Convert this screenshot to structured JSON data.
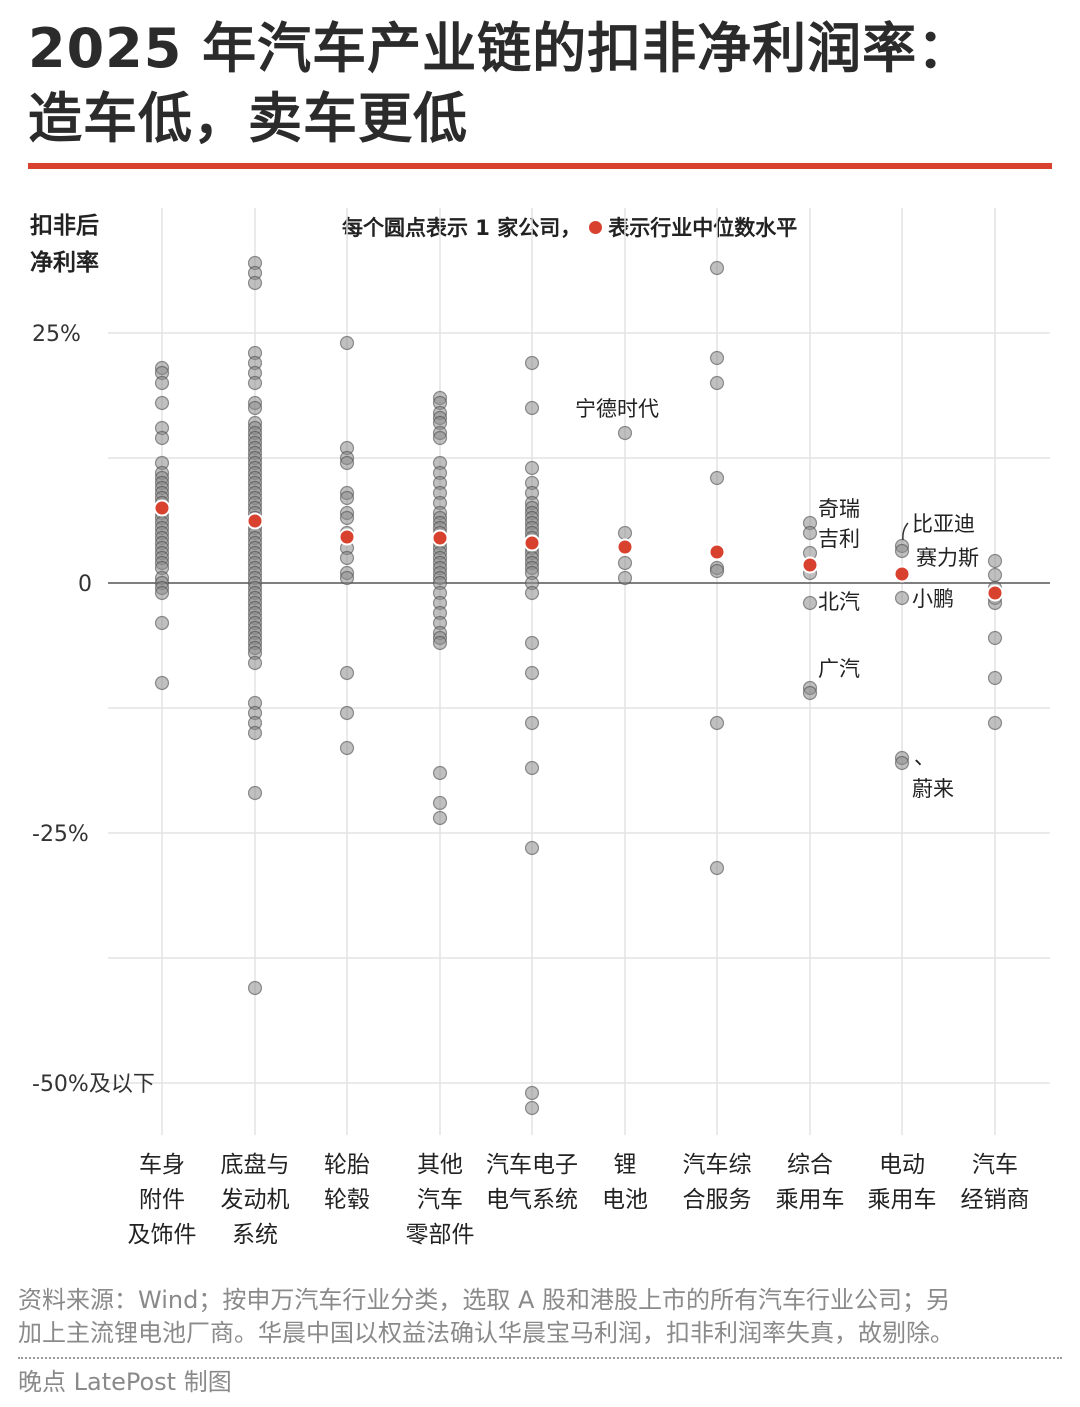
{
  "title_line1": "2025 年汽车产业链的扣非净利润率：",
  "title_line2": "造车低，卖车更低",
  "y_label_line1": "扣非后",
  "y_label_line2": "净利率",
  "legend_prefix": "每个圆点表示 1 家公司，",
  "legend_suffix": "表示行业中位数水平",
  "source_line1": "资料来源：Wind；按申万汽车行业分类，选取 A 股和港股上市的所有汽车行业公司；另",
  "source_line2": "加上主流锂电池厂商。华晨中国以权益法确认华晨宝马利润，扣非利润率失真，故剔除。",
  "credit": "晚点 LatePost 制图",
  "colors": {
    "median": "#d9412f",
    "dot": "#8c8c8c",
    "accent": "#d9412f"
  },
  "chart_data": {
    "type": "scatter",
    "ylabel": "扣非后净利率",
    "ylim": [
      -55,
      32
    ],
    "y_ticks": [
      {
        "value": 25,
        "label": "25%"
      },
      {
        "value": 0,
        "label": "0"
      },
      {
        "value": -25,
        "label": "-25%"
      },
      {
        "value": -50,
        "label": "-50%及以下"
      }
    ],
    "categories": [
      {
        "lines": [
          "车身",
          "附件",
          "及饰件"
        ],
        "median": 7.5,
        "values": [
          21.5,
          21,
          20,
          18,
          15.5,
          14.5,
          12,
          11,
          10.5,
          10,
          9.5,
          9,
          8.5,
          8,
          7.5,
          7,
          6.5,
          6,
          5.5,
          5,
          4.5,
          4,
          3.5,
          3,
          2.5,
          2,
          1.5,
          0.5,
          0,
          -0.5,
          -1,
          -4,
          -10
        ]
      },
      {
        "lines": [
          "底盘与",
          "发动机",
          "系统"
        ],
        "median": 6.2,
        "values": [
          32,
          31,
          30,
          23,
          22,
          21,
          20,
          18,
          17.5,
          16,
          15.5,
          15,
          14.5,
          14,
          13.5,
          13,
          12.5,
          12,
          11.5,
          11,
          10.5,
          10,
          9.5,
          9,
          8.5,
          8,
          7.5,
          7,
          6.5,
          6,
          5.5,
          5,
          4.5,
          4,
          3.5,
          3,
          2.5,
          2,
          1.5,
          1,
          0.5,
          0,
          -0.5,
          -1,
          -1.5,
          -2,
          -2.5,
          -3,
          -3.5,
          -4,
          -4.5,
          -5,
          -5.5,
          -6,
          -6.5,
          -7,
          -8,
          -12,
          -13,
          -14,
          -15,
          -21,
          -40.5
        ]
      },
      {
        "lines": [
          "轮胎",
          "轮毂"
        ],
        "median": 4.6,
        "values": [
          24,
          13.5,
          12.5,
          12,
          9,
          8.5,
          7,
          6.5,
          5,
          3.5,
          2.5,
          1,
          0.5,
          -9,
          -13,
          -16.5
        ]
      },
      {
        "lines": [
          "其他",
          "汽车",
          "零部件"
        ],
        "median": 4.5,
        "values": [
          18.5,
          18,
          17,
          16.5,
          16,
          15,
          14.5,
          12,
          11,
          10,
          9,
          8,
          7,
          6.5,
          6,
          5.5,
          5,
          4.5,
          4,
          3.5,
          3,
          2.5,
          2,
          1.5,
          1,
          0.5,
          0,
          -1,
          -2,
          -3,
          -4,
          -5,
          -5.5,
          -6,
          -19,
          -22,
          -23.5
        ]
      },
      {
        "lines": [
          "汽车电子",
          "电气系统"
        ],
        "median": 4,
        "values": [
          22,
          17.5,
          11.5,
          10,
          9,
          8,
          7.5,
          7,
          6.5,
          6,
          5.5,
          5,
          4.5,
          4,
          3.5,
          3,
          2.5,
          2,
          1.5,
          1,
          0,
          -1,
          -6,
          -9,
          -14,
          -18.5,
          -26.5,
          -51,
          -52.5
        ]
      },
      {
        "lines": [
          "锂",
          "电池"
        ],
        "median": 3.6,
        "values": [
          15,
          5,
          2,
          0.5
        ]
      },
      {
        "lines": [
          "汽车综",
          "合服务"
        ],
        "median": 3.1,
        "values": [
          31.5,
          22.5,
          20,
          10.5,
          1.5,
          1.2,
          -14,
          -28.5
        ]
      },
      {
        "lines": [
          "综合",
          "乘用车"
        ],
        "median": 1.8,
        "values": [
          6,
          5,
          3,
          1,
          -2,
          -10.5,
          -11
        ]
      },
      {
        "lines": [
          "电动",
          "乘用车"
        ],
        "median": 0.9,
        "values": [
          3.7,
          3.2,
          -1.5,
          -17.5,
          -18
        ]
      },
      {
        "lines": [
          "汽车",
          "经销商"
        ],
        "median": -1,
        "values": [
          2.2,
          0.8,
          -0.5,
          -1.5,
          -2,
          -5.5,
          -9.5,
          -14
        ]
      }
    ],
    "annotations": [
      {
        "text": "宁德时代",
        "category": 5,
        "value": 17.5
      },
      {
        "text": "奇瑞",
        "category": 7,
        "value": 7.5
      },
      {
        "text": "吉利",
        "category": 7,
        "value": 4.5
      },
      {
        "text": "北汽",
        "category": 7,
        "value": -1.8
      },
      {
        "text": "广汽",
        "category": 7,
        "value": -8.5
      },
      {
        "text": "比亚迪",
        "category": 8,
        "value": 6
      },
      {
        "text": "赛力斯",
        "category": 8,
        "value": 2.6
      },
      {
        "text": "小鹏",
        "category": 8,
        "value": -1.5
      },
      {
        "text": "、",
        "category": 8,
        "value": -17.3
      },
      {
        "text": "蔚来",
        "category": 8,
        "value": -20.5
      }
    ]
  }
}
